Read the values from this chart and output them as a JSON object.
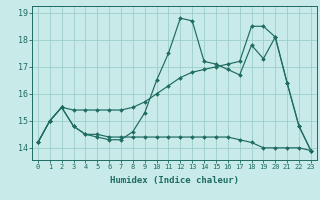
{
  "xlabel": "Humidex (Indice chaleur)",
  "bg_color": "#c8eae8",
  "grid_color": "#9ecfcb",
  "line_color": "#1e6b62",
  "xlim_min": -0.5,
  "xlim_max": 23.5,
  "ylim_min": 13.55,
  "ylim_max": 19.25,
  "yticks": [
    14,
    15,
    16,
    17,
    18,
    19
  ],
  "xticks": [
    0,
    1,
    2,
    3,
    4,
    5,
    6,
    7,
    8,
    9,
    10,
    11,
    12,
    13,
    14,
    15,
    16,
    17,
    18,
    19,
    20,
    21,
    22,
    23
  ],
  "line1_y": [
    14.2,
    15.0,
    15.5,
    14.8,
    14.5,
    14.4,
    14.3,
    14.3,
    14.6,
    15.3,
    16.5,
    17.5,
    18.8,
    18.7,
    17.2,
    17.1,
    16.9,
    16.7,
    17.8,
    17.3,
    18.1,
    16.4,
    14.8,
    13.9
  ],
  "line2_y": [
    14.2,
    15.0,
    15.5,
    15.4,
    15.4,
    15.4,
    15.4,
    15.4,
    15.5,
    15.7,
    16.0,
    16.3,
    16.6,
    16.8,
    16.9,
    17.0,
    17.1,
    17.2,
    18.5,
    18.5,
    18.1,
    16.4,
    14.8,
    13.9
  ],
  "line3_y": [
    14.2,
    15.0,
    15.5,
    14.8,
    14.5,
    14.5,
    14.4,
    14.4,
    14.4,
    14.4,
    14.4,
    14.4,
    14.4,
    14.4,
    14.4,
    14.4,
    14.4,
    14.3,
    14.2,
    14.0,
    14.0,
    14.0,
    14.0,
    13.9
  ]
}
